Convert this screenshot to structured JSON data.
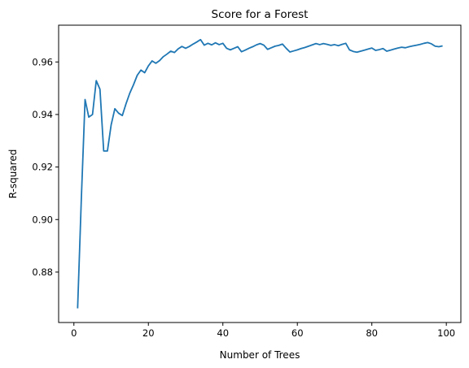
{
  "chart_data": {
    "type": "line",
    "title": "Score for a Forest",
    "xlabel": "Number of Trees",
    "ylabel": "R-squared",
    "xlim": [
      -4.1,
      103.9
    ],
    "ylim": [
      0.8608,
      0.974
    ],
    "xticks": [
      0,
      20,
      40,
      60,
      80,
      100
    ],
    "yticks": [
      0.88,
      0.9,
      0.92,
      0.94,
      0.96
    ],
    "ytick_labels": [
      "0.88",
      "0.90",
      "0.92",
      "0.94",
      "0.96"
    ],
    "grid": false,
    "series": [
      {
        "color": "#1f77b4",
        "x": [
          1,
          2,
          3,
          4,
          5,
          6,
          7,
          8,
          9,
          10,
          11,
          12,
          13,
          14,
          15,
          16,
          17,
          18,
          19,
          20,
          21,
          22,
          23,
          24,
          25,
          26,
          27,
          28,
          29,
          30,
          31,
          32,
          33,
          34,
          35,
          36,
          37,
          38,
          39,
          40,
          41,
          42,
          43,
          44,
          45,
          46,
          47,
          48,
          49,
          50,
          51,
          52,
          53,
          54,
          55,
          56,
          57,
          58,
          59,
          60,
          61,
          62,
          63,
          64,
          65,
          66,
          67,
          68,
          69,
          70,
          71,
          72,
          73,
          74,
          75,
          76,
          77,
          78,
          79,
          80,
          81,
          82,
          83,
          84,
          85,
          86,
          87,
          88,
          89,
          90,
          91,
          92,
          93,
          94,
          95,
          96,
          97,
          98,
          99
        ],
        "y": [
          0.8662,
          0.908,
          0.9457,
          0.939,
          0.94,
          0.9529,
          0.9496,
          0.9261,
          0.9261,
          0.936,
          0.9422,
          0.9405,
          0.9396,
          0.9441,
          0.9481,
          0.9513,
          0.9549,
          0.9569,
          0.9559,
          0.9585,
          0.9604,
          0.9595,
          0.9605,
          0.962,
          0.963,
          0.9641,
          0.9636,
          0.965,
          0.9659,
          0.9652,
          0.9659,
          0.9668,
          0.9676,
          0.9685,
          0.9664,
          0.9671,
          0.9665,
          0.9673,
          0.9666,
          0.9671,
          0.9652,
          0.9646,
          0.9652,
          0.9658,
          0.9639,
          0.9645,
          0.9652,
          0.9658,
          0.9665,
          0.967,
          0.9664,
          0.9648,
          0.9654,
          0.966,
          0.9663,
          0.9668,
          0.9652,
          0.9638,
          0.9642,
          0.9646,
          0.9651,
          0.9655,
          0.966,
          0.9665,
          0.967,
          0.9666,
          0.967,
          0.9667,
          0.9663,
          0.9666,
          0.9662,
          0.9667,
          0.9671,
          0.9646,
          0.964,
          0.9637,
          0.9641,
          0.9645,
          0.9649,
          0.9653,
          0.9644,
          0.9647,
          0.9651,
          0.9641,
          0.9645,
          0.9649,
          0.9653,
          0.9656,
          0.9654,
          0.9658,
          0.9661,
          0.9664,
          0.9667,
          0.9671,
          0.9674,
          0.9669,
          0.966,
          0.9658,
          0.9661
        ]
      }
    ]
  }
}
